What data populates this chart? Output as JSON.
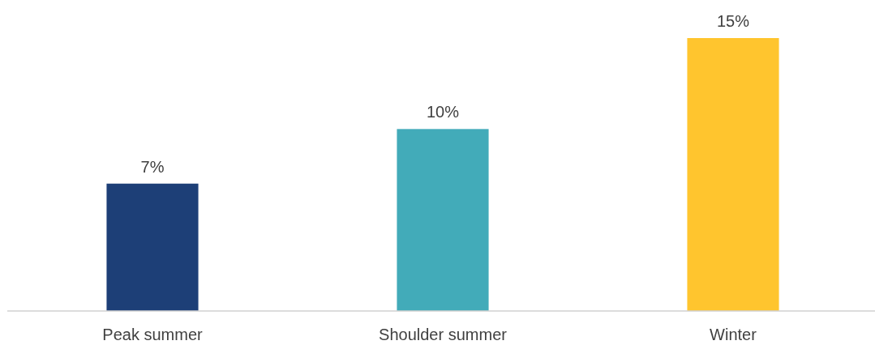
{
  "chart_data": {
    "type": "bar",
    "categories": [
      "Peak summer",
      "Shoulder summer",
      "Winter"
    ],
    "values": [
      7,
      10,
      15
    ],
    "colors": [
      "#1d3f77",
      "#42abb9",
      "#ffc52e"
    ],
    "value_labels": [
      "7%",
      "10%",
      "15%"
    ]
  }
}
